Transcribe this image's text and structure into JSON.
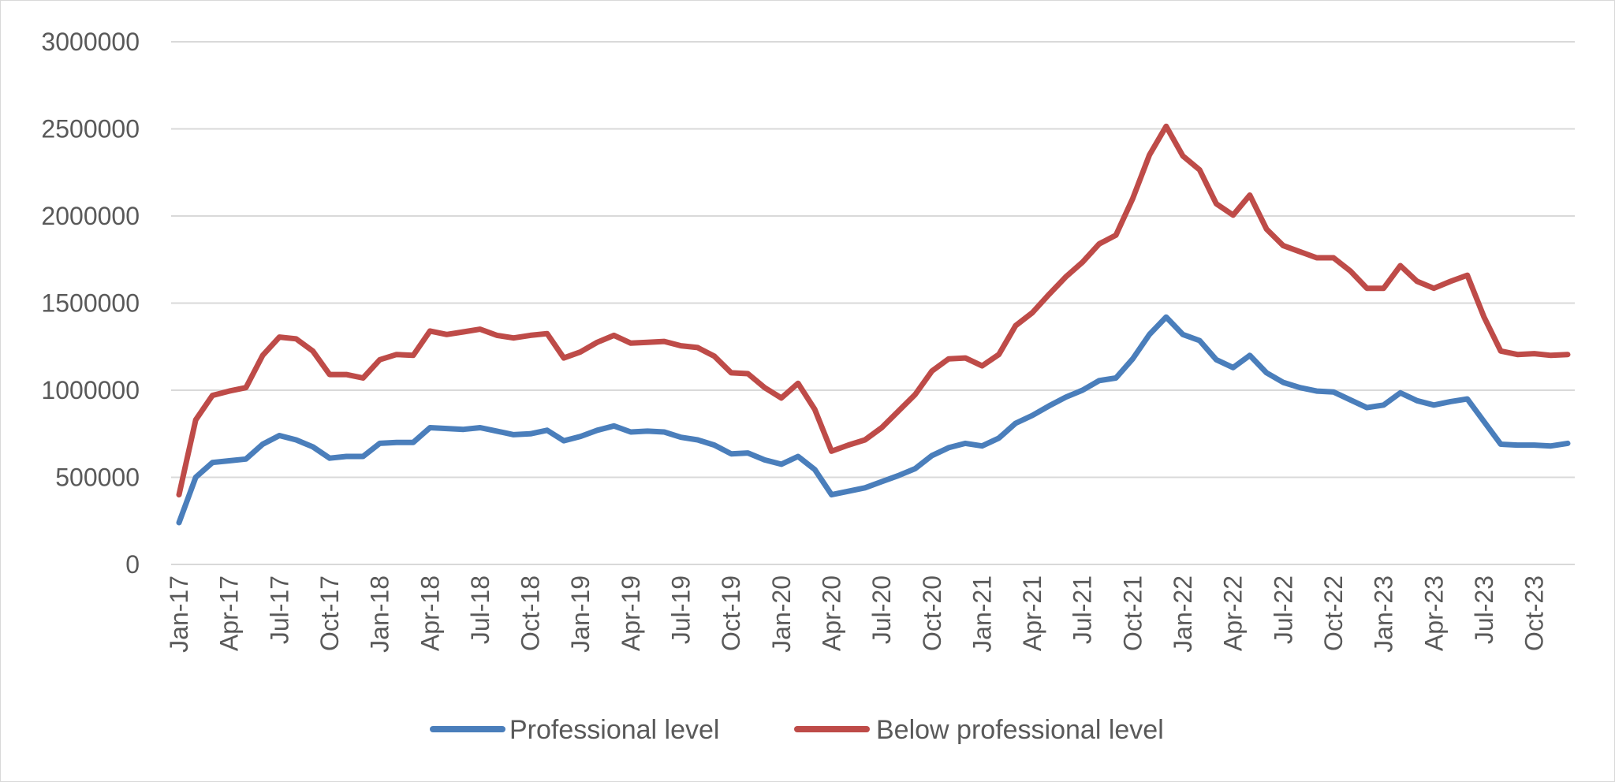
{
  "chart_data": {
    "type": "line",
    "title": "",
    "xlabel": "",
    "ylabel": "",
    "ylim": [
      0,
      3000000
    ],
    "yticks": [
      0,
      500000,
      1000000,
      1500000,
      2000000,
      2500000,
      3000000
    ],
    "ytick_labels": [
      "0",
      "500000",
      "1000000",
      "1500000",
      "2000000",
      "2500000",
      "3000000"
    ],
    "grid": true,
    "legend_position": "bottom",
    "x": [
      "Jan-17",
      "Feb-17",
      "Mar-17",
      "Apr-17",
      "May-17",
      "Jun-17",
      "Jul-17",
      "Aug-17",
      "Sep-17",
      "Oct-17",
      "Nov-17",
      "Dec-17",
      "Jan-18",
      "Feb-18",
      "Mar-18",
      "Apr-18",
      "May-18",
      "Jun-18",
      "Jul-18",
      "Aug-18",
      "Sep-18",
      "Oct-18",
      "Nov-18",
      "Dec-18",
      "Jan-19",
      "Feb-19",
      "Mar-19",
      "Apr-19",
      "May-19",
      "Jun-19",
      "Jul-19",
      "Aug-19",
      "Sep-19",
      "Oct-19",
      "Nov-19",
      "Dec-19",
      "Jan-20",
      "Feb-20",
      "Mar-20",
      "Apr-20",
      "May-20",
      "Jun-20",
      "Jul-20",
      "Aug-20",
      "Sep-20",
      "Oct-20",
      "Nov-20",
      "Dec-20",
      "Jan-21",
      "Feb-21",
      "Mar-21",
      "Apr-21",
      "May-21",
      "Jun-21",
      "Jul-21",
      "Aug-21",
      "Sep-21",
      "Oct-21",
      "Nov-21",
      "Dec-21",
      "Jan-22",
      "Feb-22",
      "Mar-22",
      "Apr-22",
      "May-22",
      "Jun-22",
      "Jul-22",
      "Aug-22",
      "Sep-22",
      "Oct-22",
      "Nov-22",
      "Dec-22",
      "Jan-23",
      "Feb-23",
      "Mar-23",
      "Apr-23",
      "May-23",
      "Jun-23",
      "Jul-23",
      "Aug-23",
      "Sep-23",
      "Oct-23",
      "Nov-23",
      "Dec-23"
    ],
    "x_tick_labels": [
      "Jan-17",
      "Apr-17",
      "Jul-17",
      "Oct-17",
      "Jan-18",
      "Apr-18",
      "Jul-18",
      "Oct-18",
      "Jan-19",
      "Apr-19",
      "Jul-19",
      "Oct-19",
      "Jan-20",
      "Apr-20",
      "Jul-20",
      "Oct-20",
      "Jan-21",
      "Apr-21",
      "Jul-21",
      "Oct-21",
      "Jan-22",
      "Apr-22",
      "Jul-22",
      "Oct-22",
      "Jan-23",
      "Apr-23",
      "Jul-23",
      "Oct-23"
    ],
    "series": [
      {
        "name": "Professional level",
        "color": "#4a7ebb",
        "values": [
          240000,
          500000,
          585000,
          595000,
          605000,
          690000,
          740000,
          715000,
          675000,
          610000,
          620000,
          620000,
          695000,
          700000,
          700000,
          785000,
          780000,
          775000,
          785000,
          765000,
          745000,
          750000,
          770000,
          710000,
          735000,
          770000,
          795000,
          760000,
          765000,
          760000,
          730000,
          715000,
          685000,
          635000,
          640000,
          600000,
          575000,
          620000,
          545000,
          400000,
          420000,
          440000,
          475000,
          510000,
          550000,
          625000,
          670000,
          695000,
          680000,
          725000,
          810000,
          855000,
          910000,
          960000,
          1000000,
          1055000,
          1070000,
          1180000,
          1320000,
          1420000,
          1320000,
          1285000,
          1175000,
          1130000,
          1200000,
          1100000,
          1045000,
          1015000,
          995000,
          990000,
          945000,
          900000,
          915000,
          985000,
          940000,
          915000,
          935000,
          950000,
          820000,
          690000,
          685000,
          685000,
          680000,
          695000
        ]
      },
      {
        "name": "Below professional level",
        "color": "#be4b48",
        "values": [
          400000,
          830000,
          970000,
          995000,
          1015000,
          1200000,
          1305000,
          1295000,
          1225000,
          1090000,
          1090000,
          1070000,
          1175000,
          1205000,
          1200000,
          1340000,
          1320000,
          1335000,
          1350000,
          1315000,
          1300000,
          1315000,
          1325000,
          1185000,
          1220000,
          1275000,
          1315000,
          1270000,
          1275000,
          1280000,
          1255000,
          1245000,
          1195000,
          1100000,
          1095000,
          1015000,
          955000,
          1040000,
          890000,
          650000,
          685000,
          715000,
          785000,
          880000,
          975000,
          1110000,
          1180000,
          1185000,
          1140000,
          1205000,
          1370000,
          1445000,
          1550000,
          1650000,
          1735000,
          1840000,
          1890000,
          2100000,
          2350000,
          2515000,
          2345000,
          2265000,
          2070000,
          2005000,
          2120000,
          1925000,
          1830000,
          1795000,
          1760000,
          1760000,
          1685000,
          1585000,
          1585000,
          1715000,
          1625000,
          1585000,
          1625000,
          1660000,
          1420000,
          1225000,
          1205000,
          1210000,
          1200000,
          1205000
        ]
      }
    ]
  }
}
